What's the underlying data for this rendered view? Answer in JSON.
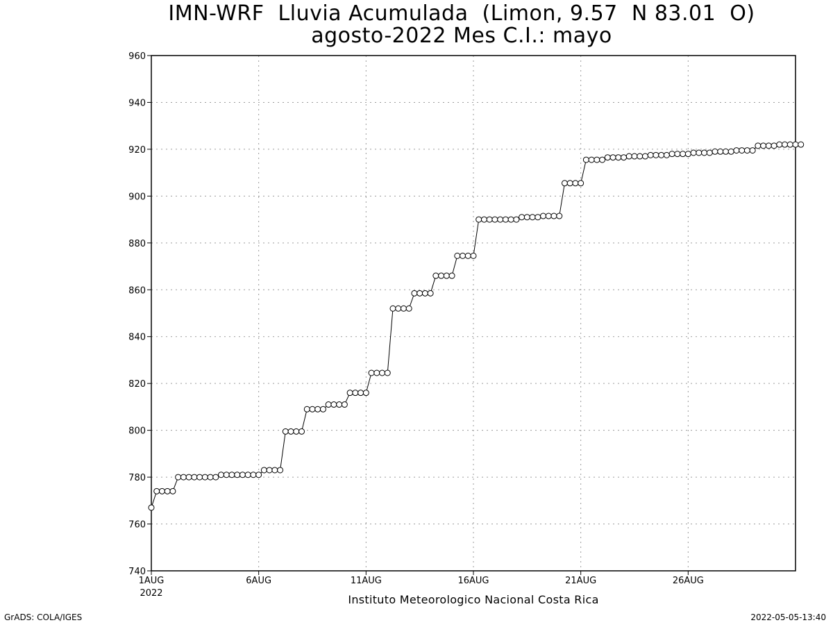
{
  "chart_data": {
    "type": "line",
    "title": "IMN-WRF  Lluvia Acumulada  (Limon, 9.57  N 83.01  O)",
    "subtitle": "agosto-2022 Mes C.I.: mayo",
    "xlabel": "Instituto Meteorologico Nacional Costa Rica",
    "ylabel": "",
    "ylim": [
      740,
      960
    ],
    "yticks": [
      740,
      760,
      780,
      800,
      820,
      840,
      860,
      880,
      900,
      920,
      940,
      960
    ],
    "xlim": [
      1,
      31
    ],
    "xticks": [
      {
        "day": 1,
        "label": "1AUG",
        "sublabel": "2022"
      },
      {
        "day": 6,
        "label": "6AUG",
        "sublabel": ""
      },
      {
        "day": 11,
        "label": "11AUG",
        "sublabel": ""
      },
      {
        "day": 16,
        "label": "16AUG",
        "sublabel": ""
      },
      {
        "day": 21,
        "label": "21AUG",
        "sublabel": ""
      },
      {
        "day": 26,
        "label": "26AUG",
        "sublabel": ""
      }
    ],
    "grid": true,
    "marker": "open-circle",
    "series": [
      {
        "x_start": 1,
        "x_step": 0.25,
        "values": [
          767,
          774,
          774,
          774,
          774,
          780,
          780,
          780,
          780,
          780,
          780,
          780,
          780,
          781,
          781,
          781,
          781,
          781,
          781,
          781,
          781,
          783,
          783,
          783,
          783,
          799.5,
          799.5,
          799.5,
          799.5,
          809,
          809,
          809,
          809,
          811,
          811,
          811,
          811,
          816,
          816,
          816,
          816,
          824.5,
          824.5,
          824.5,
          824.5,
          852,
          852,
          852,
          852,
          858.5,
          858.5,
          858.5,
          858.5,
          866,
          866,
          866,
          866,
          874.5,
          874.5,
          874.5,
          874.5,
          890,
          890,
          890,
          890,
          890,
          890,
          890,
          890,
          891,
          891,
          891,
          891,
          891.5,
          891.5,
          891.5,
          891.5,
          905.5,
          905.5,
          905.5,
          905.5,
          915.5,
          915.5,
          915.5,
          915.5,
          916.5,
          916.5,
          916.5,
          916.5,
          917,
          917,
          917,
          917,
          917.5,
          917.5,
          917.5,
          917.5,
          918,
          918,
          918,
          918,
          918.5,
          918.5,
          918.5,
          918.5,
          919,
          919,
          919,
          919,
          919.5,
          919.5,
          919.5,
          919.5,
          921.5,
          921.5,
          921.5,
          921.5,
          922,
          922,
          922,
          922,
          922
        ]
      }
    ]
  },
  "footer": {
    "credit_left": "GrADS: COLA/IGES",
    "credit_right": "2022-05-05-13:40"
  },
  "colors": {
    "line": "#000000",
    "marker_fill": "#ffffff",
    "grid": "#9a9a9a",
    "frame": "#000000"
  }
}
